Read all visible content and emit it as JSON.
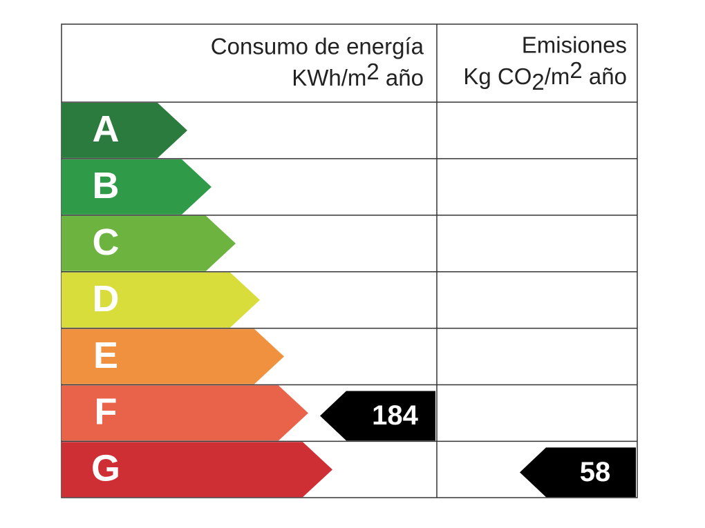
{
  "energy": {
    "title": "Consumo de energía",
    "unit": [
      "KWh/m",
      "2",
      " año"
    ],
    "value": 184,
    "rating": "F"
  },
  "emissions": {
    "title": "Emisiones",
    "unit": [
      "Kg CO",
      "2",
      "/m",
      "2",
      " año"
    ],
    "value": 58,
    "rating": "G"
  },
  "ratings": [
    {
      "letter": "A",
      "color": "#2b7a3e"
    },
    {
      "letter": "B",
      "color": "#2f9a48"
    },
    {
      "letter": "C",
      "color": "#6cb33f"
    },
    {
      "letter": "D",
      "color": "#d9dd3b"
    },
    {
      "letter": "E",
      "color": "#f0913f"
    },
    {
      "letter": "F",
      "color": "#e8634a"
    },
    {
      "letter": "G",
      "color": "#cd2f35"
    }
  ]
}
